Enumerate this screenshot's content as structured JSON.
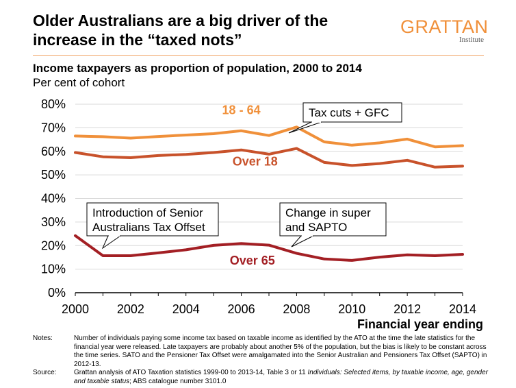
{
  "header": {
    "title": "Older Australians are a big driver of the increase in the “taxed nots”",
    "logo": "GRATTAN",
    "logo_sub": "Institute"
  },
  "chart_data": {
    "type": "line",
    "title": "Income taxpayers as proportion of population, 2000 to 2014",
    "subtitle": "Per cent of cohort",
    "xlabel": "Financial year ending",
    "ylabel": "",
    "x": [
      2000,
      2001,
      2002,
      2003,
      2004,
      2005,
      2006,
      2007,
      2008,
      2009,
      2010,
      2011,
      2012,
      2013,
      2014
    ],
    "xlim": [
      2000,
      2014
    ],
    "ylim": [
      0,
      80
    ],
    "x_ticks": [
      "2000",
      "2002",
      "2004",
      "2006",
      "2008",
      "2010",
      "2012",
      "2014"
    ],
    "y_ticks": [
      "0%",
      "10%",
      "20%",
      "30%",
      "40%",
      "50%",
      "60%",
      "70%",
      "80%"
    ],
    "grid": "horizontal",
    "series": [
      {
        "name": "18 - 64",
        "color": "#f0903a",
        "values": [
          66.5,
          66.2,
          65.6,
          66.3,
          66.9,
          67.5,
          68.7,
          66.7,
          70.3,
          64.0,
          62.6,
          63.6,
          65.2,
          61.9,
          62.4
        ]
      },
      {
        "name": "Over 18",
        "color": "#c8522b",
        "values": [
          59.5,
          57.7,
          57.3,
          58.2,
          58.7,
          59.5,
          60.6,
          58.8,
          61.2,
          55.3,
          54.0,
          54.8,
          56.2,
          53.3,
          53.7
        ]
      },
      {
        "name": "Over 65",
        "color": "#a31f24",
        "values": [
          24.2,
          15.7,
          15.7,
          16.9,
          18.2,
          20.1,
          20.9,
          20.2,
          16.7,
          14.3,
          13.7,
          15.1,
          16.1,
          15.7,
          16.3
        ]
      }
    ],
    "annotations": [
      {
        "text": "Tax cuts + GFC",
        "points_to": [
          2008,
          70.3
        ]
      },
      {
        "text": "Introduction of Senior\nAustralians Tax Offset",
        "points_to": [
          2001,
          16.5
        ]
      },
      {
        "text": "Change in super\nand SAPTO",
        "points_to": [
          2008,
          17.5
        ]
      }
    ]
  },
  "notes": {
    "notes_label": "Notes:",
    "notes_text": "Number of individuals paying some income tax based on taxable income as identified by the ATO at the time the late statistics for the financial year were released. Late taxpayers are probably about another 5% of the population, but the bias is likely to be constant across the time series. SATO and the Pensioner Tax Offset were amalgamated into the Senior Australian and Pensioners Tax Offset (SAPTO) in 2012-13.",
    "source_label": "Source:",
    "source_text_1": "Grattan analysis of ATO Taxation statistics 1999-00 to 2013-14, Table 3 or 11 ",
    "source_text_italic": "Individuals: Selected items, by taxable income, age, gender and taxable status",
    "source_text_2": "; ABS catalogue number 3101.0"
  }
}
